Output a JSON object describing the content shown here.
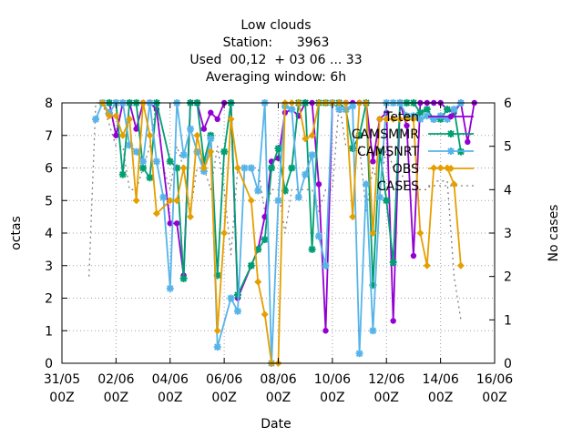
{
  "chart_data": {
    "type": "line",
    "title_lines": [
      "Low clouds",
      "Station:      3963",
      "Used  00,12  + 03 06 ... 33",
      "Averaging window:  6h"
    ],
    "xlabel": "Date",
    "ylabel": "octas",
    "y2label": "No cases",
    "xlim": [
      "31/05 00Z",
      "16/06 00Z"
    ],
    "xlim_days": [
      0,
      16
    ],
    "ylim": [
      0,
      8
    ],
    "y2lim": [
      0,
      6
    ],
    "grid": true,
    "legend_position": "top-right",
    "x_ticks": [
      {
        "day": 0,
        "line1": "31/05",
        "line2": "00Z"
      },
      {
        "day": 2,
        "line1": "02/06",
        "line2": "00Z"
      },
      {
        "day": 4,
        "line1": "04/06",
        "line2": "00Z"
      },
      {
        "day": 6,
        "line1": "06/06",
        "line2": "00Z"
      },
      {
        "day": 8,
        "line1": "08/06",
        "line2": "00Z"
      },
      {
        "day": 10,
        "line1": "10/06",
        "line2": "00Z"
      },
      {
        "day": 12,
        "line1": "12/06",
        "line2": "00Z"
      },
      {
        "day": 14,
        "line1": "14/06",
        "line2": "00Z"
      },
      {
        "day": 16,
        "line1": "16/06",
        "line2": "00Z"
      }
    ],
    "y_ticks": [
      0,
      1,
      2,
      3,
      4,
      5,
      6,
      7,
      8
    ],
    "y2_ticks": [
      0,
      1,
      2,
      3,
      4,
      5,
      6
    ],
    "series": [
      {
        "name": "Teten",
        "color": "#9400d3",
        "marker": "circle",
        "points": [
          [
            1.5,
            8
          ],
          [
            1.75,
            8
          ],
          [
            2.0,
            7
          ],
          [
            2.25,
            8
          ],
          [
            2.5,
            8
          ],
          [
            2.75,
            7.2
          ],
          [
            3.0,
            8
          ],
          [
            3.25,
            8
          ],
          [
            3.5,
            7.8
          ],
          [
            4.0,
            4.3
          ],
          [
            4.25,
            4.3
          ],
          [
            4.5,
            2.7
          ],
          [
            4.75,
            8
          ],
          [
            5.0,
            8
          ],
          [
            5.25,
            7.2
          ],
          [
            5.5,
            7.7
          ],
          [
            5.75,
            7.5
          ],
          [
            6.0,
            8
          ],
          [
            6.25,
            8
          ],
          [
            6.5,
            2.0
          ],
          [
            7.0,
            3.0
          ],
          [
            7.25,
            3.5
          ],
          [
            7.5,
            4.5
          ],
          [
            7.75,
            6.2
          ],
          [
            8.0,
            6.3
          ],
          [
            8.25,
            7.7
          ],
          [
            8.5,
            7.8
          ],
          [
            8.75,
            7.6
          ],
          [
            9.0,
            8
          ],
          [
            9.25,
            8
          ],
          [
            9.5,
            5.5
          ],
          [
            9.75,
            1.0
          ],
          [
            10.0,
            8
          ],
          [
            10.25,
            8
          ],
          [
            10.5,
            8
          ],
          [
            10.75,
            8
          ],
          [
            11.0,
            8
          ],
          [
            11.25,
            8
          ],
          [
            11.5,
            6.2
          ],
          [
            11.75,
            7.5
          ],
          [
            12.0,
            7.7
          ],
          [
            12.25,
            1.3
          ],
          [
            12.5,
            8
          ],
          [
            12.75,
            7.3
          ],
          [
            13.0,
            3.3
          ],
          [
            13.25,
            8
          ],
          [
            13.5,
            8
          ],
          [
            13.75,
            8
          ],
          [
            14.0,
            8
          ],
          [
            14.25,
            7.8
          ],
          [
            14.5,
            7.7
          ],
          [
            14.75,
            8
          ],
          [
            15.0,
            6.8
          ],
          [
            15.25,
            8
          ]
        ]
      },
      {
        "name": "CAMSMMR",
        "color": "#009e73",
        "marker": "star",
        "points": [
          [
            1.5,
            8
          ],
          [
            1.75,
            8
          ],
          [
            2.0,
            8
          ],
          [
            2.25,
            5.8
          ],
          [
            2.5,
            8
          ],
          [
            2.75,
            8
          ],
          [
            3.0,
            6.0
          ],
          [
            3.25,
            5.7
          ],
          [
            3.5,
            8
          ],
          [
            4.0,
            6.2
          ],
          [
            4.25,
            6.0
          ],
          [
            4.5,
            2.6
          ],
          [
            4.75,
            8
          ],
          [
            5.0,
            8
          ],
          [
            5.25,
            6.2
          ],
          [
            5.5,
            7.0
          ],
          [
            5.75,
            2.7
          ],
          [
            6.0,
            6.5
          ],
          [
            6.25,
            8
          ],
          [
            6.5,
            2.1
          ],
          [
            7.0,
            3.0
          ],
          [
            7.25,
            3.5
          ],
          [
            7.5,
            3.8
          ],
          [
            7.75,
            6.0
          ],
          [
            8.0,
            6.6
          ],
          [
            8.25,
            5.3
          ],
          [
            8.5,
            6.0
          ],
          [
            8.75,
            8
          ],
          [
            9.0,
            8
          ],
          [
            9.25,
            3.5
          ],
          [
            9.5,
            8
          ],
          [
            9.75,
            8
          ],
          [
            10.0,
            8
          ],
          [
            10.25,
            8
          ],
          [
            10.5,
            7.8
          ],
          [
            10.75,
            6.6
          ],
          [
            11.0,
            7.0
          ],
          [
            11.25,
            8
          ],
          [
            11.5,
            2.4
          ],
          [
            11.75,
            6.5
          ],
          [
            12.0,
            5.0
          ],
          [
            12.25,
            3.1
          ],
          [
            12.5,
            8
          ],
          [
            12.75,
            8
          ],
          [
            13.0,
            8
          ],
          [
            13.25,
            7.7
          ],
          [
            13.5,
            7.8
          ],
          [
            13.75,
            7.5
          ],
          [
            14.0,
            7.5
          ],
          [
            14.25,
            7.8
          ],
          [
            14.5,
            7.8
          ],
          [
            14.75,
            6.5
          ]
        ]
      },
      {
        "name": "CAMSNRT",
        "color": "#56b4e9",
        "marker": "star",
        "points": [
          [
            1.25,
            7.5
          ],
          [
            1.5,
            8
          ],
          [
            1.75,
            7.7
          ],
          [
            2.0,
            8
          ],
          [
            2.25,
            8
          ],
          [
            2.5,
            6.7
          ],
          [
            2.75,
            6.5
          ],
          [
            3.0,
            6.2
          ],
          [
            3.25,
            8
          ],
          [
            3.5,
            6.2
          ],
          [
            3.75,
            5.1
          ],
          [
            4.0,
            2.3
          ],
          [
            4.25,
            8
          ],
          [
            4.5,
            6.4
          ],
          [
            4.75,
            7.2
          ],
          [
            5.0,
            6.5
          ],
          [
            5.25,
            5.9
          ],
          [
            5.5,
            6.9
          ],
          [
            5.75,
            0.5
          ],
          [
            6.25,
            2.0
          ],
          [
            6.5,
            1.6
          ],
          [
            6.75,
            6.0
          ],
          [
            7.0,
            6.0
          ],
          [
            7.25,
            5.3
          ],
          [
            7.5,
            8
          ],
          [
            7.75,
            0.0
          ],
          [
            8.0,
            5.0
          ],
          [
            8.25,
            7.9
          ],
          [
            8.5,
            7.8
          ],
          [
            8.75,
            5.1
          ],
          [
            9.0,
            5.8
          ],
          [
            9.25,
            6.4
          ],
          [
            9.5,
            3.9
          ],
          [
            9.75,
            3.0
          ],
          [
            10.0,
            8
          ],
          [
            10.25,
            7.8
          ],
          [
            10.5,
            7.8
          ],
          [
            10.75,
            7.9
          ],
          [
            11.0,
            0.3
          ],
          [
            11.25,
            5.5
          ],
          [
            11.5,
            1.0
          ],
          [
            11.75,
            5.1
          ],
          [
            12.0,
            8
          ],
          [
            12.25,
            8
          ],
          [
            12.5,
            8
          ],
          [
            12.75,
            7.6
          ],
          [
            13.0,
            7.6
          ],
          [
            13.25,
            7.5
          ],
          [
            13.5,
            7.6
          ],
          [
            13.75,
            7.5
          ],
          [
            14.0,
            7.6
          ],
          [
            14.25,
            7.5
          ],
          [
            14.5,
            7.8
          ],
          [
            14.75,
            8
          ]
        ]
      },
      {
        "name": "OBS",
        "color": "#e69f00",
        "marker": "diamond",
        "points": [
          [
            1.5,
            8
          ],
          [
            1.75,
            7.6
          ],
          [
            2.0,
            7.6
          ],
          [
            2.25,
            7.0
          ],
          [
            2.5,
            7.5
          ],
          [
            2.75,
            5.0
          ],
          [
            3.0,
            8
          ],
          [
            3.25,
            7.0
          ],
          [
            3.5,
            4.6
          ],
          [
            4.0,
            5.0
          ],
          [
            4.25,
            5.0
          ],
          [
            4.5,
            6.0
          ],
          [
            4.75,
            4.5
          ],
          [
            5.0,
            7.0
          ],
          [
            5.25,
            6.0
          ],
          [
            5.5,
            6.5
          ],
          [
            5.75,
            1.0
          ],
          [
            6.0,
            4.0
          ],
          [
            6.25,
            7.5
          ],
          [
            6.5,
            6.0
          ],
          [
            7.0,
            5.0
          ],
          [
            7.25,
            2.5
          ],
          [
            7.5,
            1.5
          ],
          [
            7.75,
            0.0
          ],
          [
            8.0,
            0.0
          ],
          [
            8.25,
            8
          ],
          [
            8.5,
            8
          ],
          [
            8.75,
            8
          ],
          [
            9.0,
            6.9
          ],
          [
            9.25,
            7.0
          ],
          [
            9.5,
            8
          ],
          [
            9.75,
            8
          ],
          [
            10.0,
            8
          ],
          [
            10.25,
            8
          ],
          [
            10.5,
            8
          ],
          [
            10.75,
            4.5
          ],
          [
            11.0,
            8
          ],
          [
            11.25,
            8
          ],
          [
            11.5,
            4.0
          ],
          [
            11.75,
            7.5
          ],
          [
            12.0,
            7.5
          ],
          [
            12.25,
            7.5
          ],
          [
            12.5,
            7.5
          ],
          [
            12.75,
            7.5
          ],
          [
            13.0,
            7.5
          ],
          [
            13.25,
            4.0
          ],
          [
            13.5,
            3.0
          ],
          [
            13.75,
            6.0
          ],
          [
            14.0,
            6.0
          ],
          [
            14.25,
            6.0
          ],
          [
            14.5,
            5.5
          ],
          [
            14.75,
            3.0
          ]
        ]
      },
      {
        "name": "CASES",
        "color": "#808080",
        "dash": true,
        "axis": "y2",
        "points": [
          [
            1.0,
            2.0
          ],
          [
            1.25,
            6.0
          ],
          [
            1.5,
            6.0
          ],
          [
            2.0,
            5.0
          ],
          [
            2.25,
            5.0
          ],
          [
            2.5,
            4.0
          ],
          [
            2.75,
            4.0
          ],
          [
            3.0,
            4.5
          ],
          [
            3.25,
            5.0
          ],
          [
            3.5,
            6.0
          ],
          [
            3.75,
            4.5
          ],
          [
            4.0,
            4.0
          ],
          [
            4.25,
            5.0
          ],
          [
            4.5,
            4.5
          ],
          [
            4.75,
            3.5
          ],
          [
            5.0,
            4.5
          ],
          [
            5.25,
            4.5
          ],
          [
            5.5,
            4.0
          ],
          [
            5.75,
            5.0
          ],
          [
            6.0,
            4.0
          ],
          [
            6.25,
            2.5
          ],
          [
            6.5,
            4.5
          ],
          [
            7.0,
            4.5
          ],
          [
            7.25,
            4.5
          ],
          [
            7.5,
            3.5
          ],
          [
            7.75,
            4.0
          ],
          [
            8.0,
            4.0
          ],
          [
            8.25,
            3.0
          ],
          [
            8.5,
            4.0
          ],
          [
            8.75,
            4.0
          ],
          [
            9.0,
            4.0
          ],
          [
            9.25,
            4.0
          ],
          [
            9.5,
            3.5
          ],
          [
            9.75,
            4.0
          ],
          [
            10.0,
            4.0
          ],
          [
            10.25,
            6.0
          ],
          [
            10.5,
            5.0
          ],
          [
            11.0,
            5.0
          ],
          [
            11.25,
            3.5
          ],
          [
            11.5,
            4.5
          ],
          [
            11.75,
            4.0
          ],
          [
            12.0,
            5.0
          ],
          [
            12.25,
            4.5
          ],
          [
            12.5,
            4.5
          ],
          [
            12.75,
            4.0
          ],
          [
            13.0,
            4.0
          ],
          [
            13.25,
            4.0
          ],
          [
            13.5,
            4.0
          ],
          [
            13.75,
            4.2
          ],
          [
            14.0,
            4.2
          ],
          [
            14.25,
            4.2
          ],
          [
            14.5,
            2.0
          ],
          [
            14.75,
            1.0
          ]
        ]
      }
    ]
  }
}
